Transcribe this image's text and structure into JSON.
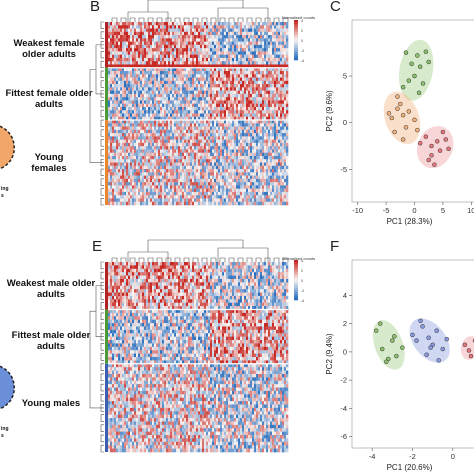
{
  "panels": {
    "B": "B",
    "C": "C",
    "E": "E",
    "F": "F"
  },
  "left_fragments": {
    "top": [
      "ing",
      "s"
    ],
    "bottom": [
      "ing",
      "s"
    ]
  },
  "heatmap_top": {
    "legend_title": "Normalised counts",
    "legend_ticks": [
      "4",
      "2",
      "0",
      "-2",
      "-4"
    ],
    "groups": [
      {
        "label": "Weakest female older adults",
        "color": "#b22222",
        "rows": 14
      },
      {
        "label": "Fittest female older adults",
        "color": "#4a9a3a",
        "rows": 16
      },
      {
        "label": "Young females",
        "color": "#e8862f",
        "rows": 26
      }
    ]
  },
  "heatmap_bottom": {
    "legend_title": "Normalised counts",
    "legend_ticks": [
      "4",
      "2",
      "0",
      "-2",
      "-4"
    ],
    "groups": [
      {
        "label": "Weakest male older adults",
        "color": "#b22222",
        "rows": 14
      },
      {
        "label": "Fittest male older adults",
        "color": "#4a9a3a",
        "rows": 16
      },
      {
        "label": "Young males",
        "color": "#3a5fb0",
        "rows": 26
      }
    ]
  },
  "chart_data": [
    {
      "type": "scatter",
      "xlabel": "PC1 (28.3%)",
      "ylabel": "PC2 (9.6%)",
      "xlim": [
        -11,
        11
      ],
      "ylim": [
        -8.5,
        11
      ],
      "xticks": [
        "-10",
        "-5",
        "0",
        "5",
        "10"
      ],
      "yticks": [
        "5",
        "0",
        "-5"
      ],
      "series": [
        {
          "color": "#8bc26b",
          "x": [
            -1.5,
            -0.5,
            0.5,
            1,
            2,
            -1,
            0,
            1.5,
            2.5,
            -2,
            0.8
          ],
          "y": [
            7.5,
            6.3,
            7.2,
            6,
            7.6,
            4.5,
            5,
            4.2,
            6.5,
            3.8,
            3.2
          ]
        },
        {
          "color": "#f2b27a",
          "x": [
            -4,
            -3,
            -2,
            -1.5,
            -4.5,
            -2.5,
            -3.5,
            -1,
            0,
            0.5,
            -3,
            -2
          ],
          "y": [
            0.5,
            1.5,
            0.8,
            -0.5,
            1,
            2,
            -1,
            1.2,
            0.3,
            -0.8,
            2.8,
            -1.8
          ]
        },
        {
          "color": "#e8777e",
          "x": [
            2,
            3,
            4,
            5,
            3,
            6,
            2.5,
            4.5,
            1,
            5.5,
            3.5
          ],
          "y": [
            -1.5,
            -2.5,
            -2,
            -1,
            -3.5,
            -2.8,
            -4,
            -3,
            -2.2,
            -1.8,
            -4.5
          ]
        }
      ]
    },
    {
      "type": "scatter",
      "xlabel": "PC1 (20.6%)",
      "ylabel": "PC2 (9.4%)",
      "xlim": [
        -5,
        1.2
      ],
      "ylim": [
        -6.8,
        6.5
      ],
      "xticks": [
        "-4",
        "-2",
        "0"
      ],
      "yticks": [
        "4",
        "2",
        "0",
        "-2",
        "-4",
        "-6"
      ],
      "series": [
        {
          "color": "#8bc26b",
          "x": [
            -3.8,
            -3.5,
            -3.2,
            -3,
            -2.8,
            -3.6,
            -2.5,
            -3.3,
            -2.9
          ],
          "y": [
            1.5,
            0.2,
            -0.5,
            0.8,
            -0.3,
            2,
            0.3,
            -0.7,
            1.1
          ]
        },
        {
          "color": "#8a9ae0",
          "x": [
            -1.5,
            -1.2,
            -1,
            -0.8,
            -0.5,
            -1.8,
            -2,
            -1.3,
            -0.3,
            -1.6,
            -0.7,
            -1.1
          ],
          "y": [
            1.8,
            1,
            0.5,
            1.5,
            0.2,
            0.8,
            1.2,
            -0.2,
            0.9,
            2.2,
            -0.6,
            0.3
          ]
        },
        {
          "color": "#e8777e",
          "x": [
            0.6,
            0.9,
            1.1,
            0.8
          ],
          "y": [
            0.5,
            -0.3,
            0.8,
            0.1
          ]
        }
      ]
    }
  ]
}
